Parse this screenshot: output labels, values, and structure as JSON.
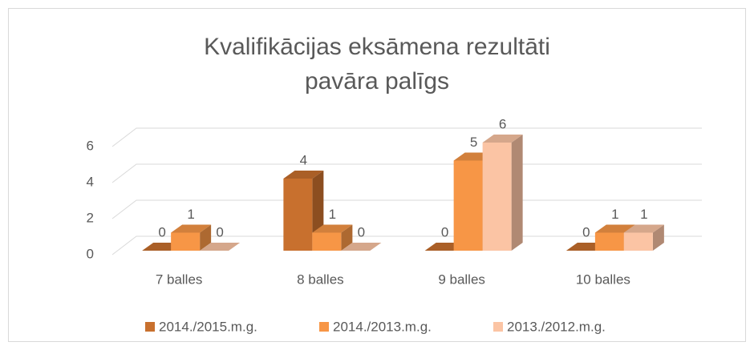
{
  "chart_data": {
    "type": "bar3d",
    "title": [
      "Kvalifikācijas eksāmena rezultāti",
      "pavāra palīgs"
    ],
    "categories": [
      "7 balles",
      "8 balles",
      "9 balles",
      "10 balles"
    ],
    "series": [
      {
        "name": "2014./2015.m.g.",
        "color": "#c8702e",
        "values": [
          0,
          4,
          0,
          0
        ]
      },
      {
        "name": "2014./2013.m.g.",
        "color": "#f79646",
        "values": [
          1,
          1,
          5,
          1
        ]
      },
      {
        "name": "2013./2012.m.g.",
        "color": "#fbc4a4",
        "values": [
          0,
          0,
          6,
          1
        ]
      }
    ],
    "ylim": [
      0,
      6
    ],
    "yticks": [
      0,
      2,
      4,
      6
    ],
    "grid": true,
    "legend": "bottom"
  }
}
